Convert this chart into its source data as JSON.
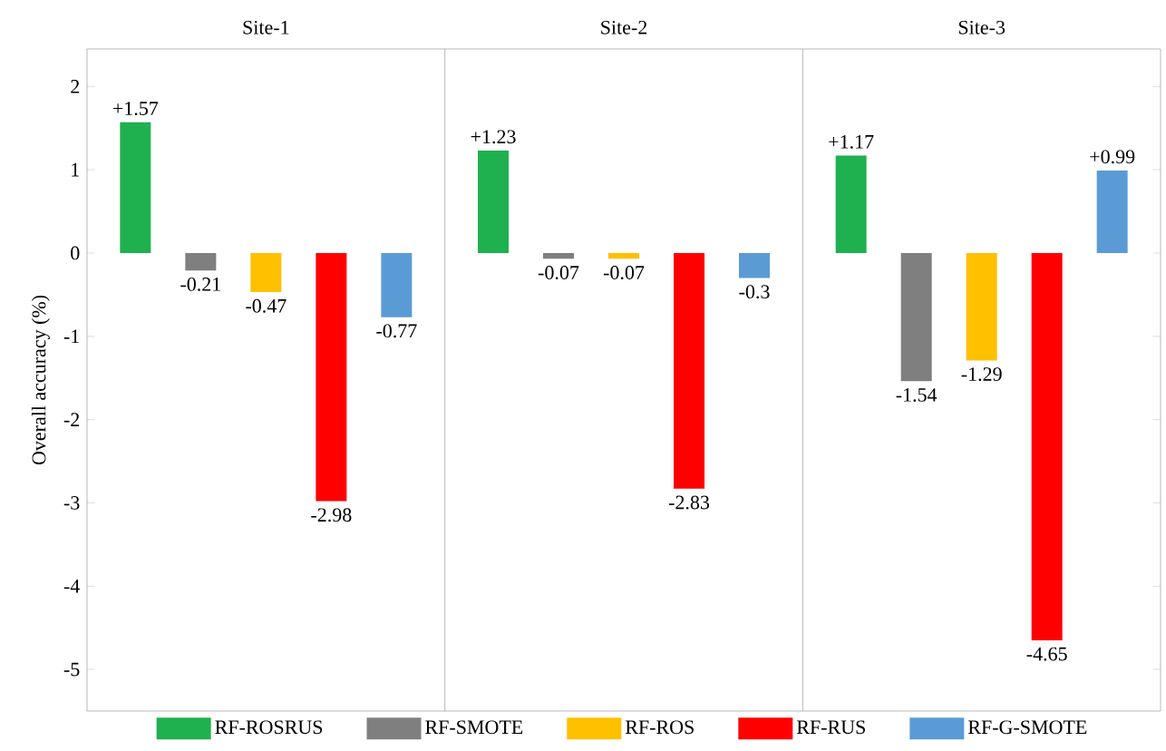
{
  "chart_data": {
    "type": "bar",
    "ylabel": "Overall accuracy (%)",
    "categories": [
      "Site-1",
      "Site-2",
      "Site-3"
    ],
    "ylim": [
      -5.5,
      2.45
    ],
    "yticks": [
      2,
      1,
      0,
      -1,
      -2,
      -3,
      -4,
      -5
    ],
    "legend": "bottom",
    "grid": false,
    "series": [
      {
        "name": "RF-ROSRUS",
        "color": "#1fb04f",
        "values": [
          1.57,
          1.23,
          1.17
        ],
        "value_labels": [
          "+1.57",
          "+1.23",
          "+1.17"
        ]
      },
      {
        "name": "RF-SMOTE",
        "color": "#7f7f7f",
        "values": [
          -0.21,
          -0.07,
          -1.54
        ],
        "value_labels": [
          "-0.21",
          "-0.07",
          "-1.54"
        ]
      },
      {
        "name": "RF-ROS",
        "color": "#ffc000",
        "values": [
          -0.47,
          -0.07,
          -1.29
        ],
        "value_labels": [
          "-0.47",
          "-0.07",
          "-1.29"
        ]
      },
      {
        "name": "RF-RUS",
        "color": "#ff0000",
        "values": [
          -2.98,
          -2.83,
          -4.65
        ],
        "value_labels": [
          "-2.98",
          "-2.83",
          "-4.65"
        ]
      },
      {
        "name": "RF-G-SMOTE",
        "color": "#5b9bd5",
        "values": [
          -0.77,
          -0.3,
          0.99
        ],
        "value_labels": [
          "-0.77",
          "-0.3",
          "+0.99"
        ]
      }
    ]
  }
}
